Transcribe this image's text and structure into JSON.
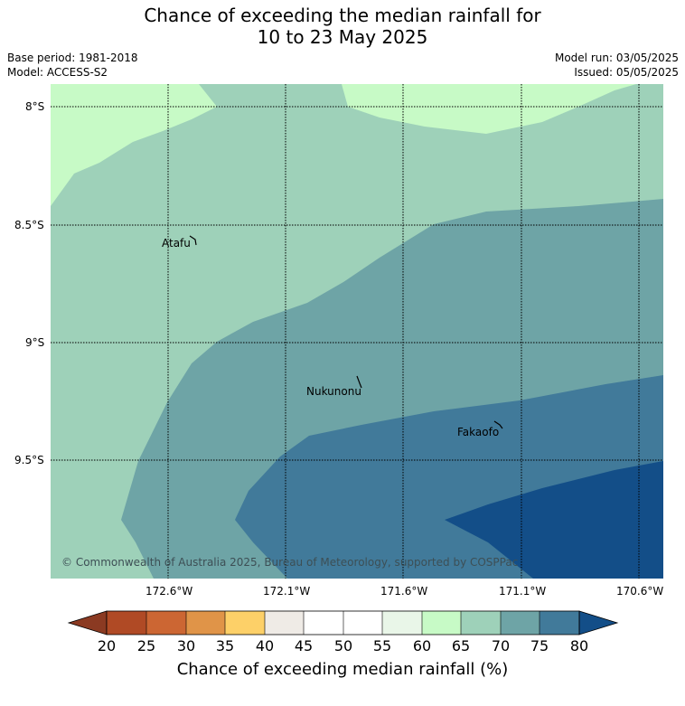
{
  "title": {
    "line1": "Chance of exceeding the median rainfall for",
    "line2": "10 to 23 May 2025"
  },
  "meta": {
    "base_period": "Base period: 1981-2018",
    "model": "Model: ACCESS-S2",
    "model_run": "Model run: 03/05/2025",
    "issued": "Issued: 05/05/2025"
  },
  "map": {
    "lat_labels": [
      "8°S",
      "8.5°S",
      "9°S",
      "9.5°S"
    ],
    "lon_labels": [
      "172.6°W",
      "172.1°W",
      "171.6°W",
      "171.1°W",
      "170.6°W"
    ],
    "places": [
      "Atafu",
      "Nukunonu",
      "Fakaofo"
    ],
    "copyright": "© Commonwealth of Australia 2025, Bureau of Meteorology, supported by COSPPac"
  },
  "colorbar": {
    "ticks": [
      "20",
      "25",
      "30",
      "35",
      "40",
      "45",
      "50",
      "55",
      "60",
      "65",
      "70",
      "75",
      "80"
    ],
    "colors": [
      "#8b3a22",
      "#b04a25",
      "#cc6633",
      "#e09448",
      "#fdd068",
      "#efebe6",
      "#ffffff",
      "#ffffff",
      "#e9f6e8",
      "#c7fac6",
      "#9ed1b9",
      "#6ea4a6",
      "#417a9a",
      "#134e88"
    ],
    "title": "Chance of exceeding median rainfall (%)"
  }
}
